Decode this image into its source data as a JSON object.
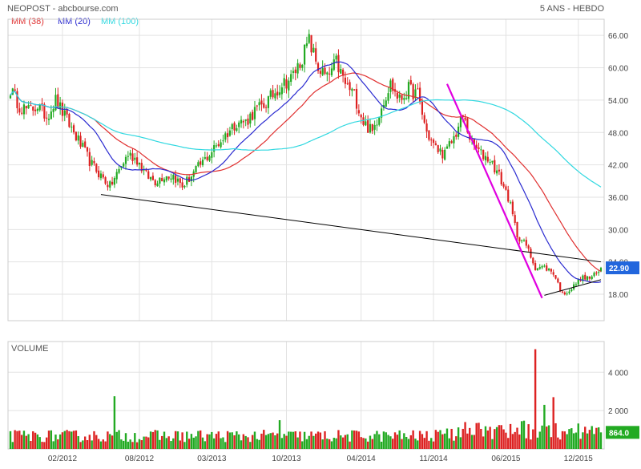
{
  "header": {
    "title": "NEOPOST - abcbourse.com",
    "period": "5 ANS - HEBDO"
  },
  "legend": [
    {
      "label": "MM (38)",
      "color": "#e03030"
    },
    {
      "label": "MM (20)",
      "color": "#2a2ad0"
    },
    {
      "label": "MM (100)",
      "color": "#30d8e0"
    }
  ],
  "chart_data": {
    "type": "candlestick",
    "price_axis": {
      "ylim": [
        13.1,
        69.0
      ],
      "ticks": [
        18,
        24,
        30,
        36,
        42,
        48,
        54,
        60,
        66
      ],
      "tick_labels": [
        "18.00",
        "24.00",
        "30.00",
        "36.00",
        "42.00",
        "48.00",
        "54.00",
        "60.00",
        "66.00"
      ]
    },
    "last_price": {
      "value": 22.9,
      "label": "22.90",
      "color": "#2266dd"
    },
    "x_axis": {
      "range": [
        0,
        261
      ],
      "ticks": [
        {
          "x": 23,
          "label": "02/2012"
        },
        {
          "x": 57,
          "label": "08/2012"
        },
        {
          "x": 89,
          "label": "03/2013"
        },
        {
          "x": 122,
          "label": "10/2013"
        },
        {
          "x": 155,
          "label": "04/2014"
        },
        {
          "x": 187,
          "label": "11/2014"
        },
        {
          "x": 219,
          "label": "06/2015"
        },
        {
          "x": 251,
          "label": "12/2015"
        }
      ]
    },
    "price_anchors": [
      [
        0,
        56
      ],
      [
        4,
        53
      ],
      [
        8,
        52
      ],
      [
        12,
        53
      ],
      [
        16,
        51
      ],
      [
        20,
        54
      ],
      [
        24,
        51
      ],
      [
        28,
        48
      ],
      [
        32,
        45
      ],
      [
        36,
        42
      ],
      [
        40,
        40
      ],
      [
        44,
        38
      ],
      [
        48,
        41
      ],
      [
        52,
        44
      ],
      [
        56,
        43
      ],
      [
        60,
        40
      ],
      [
        64,
        39
      ],
      [
        68,
        40
      ],
      [
        72,
        40
      ],
      [
        76,
        38
      ],
      [
        80,
        40
      ],
      [
        84,
        42
      ],
      [
        88,
        44
      ],
      [
        92,
        46
      ],
      [
        96,
        48
      ],
      [
        100,
        50
      ],
      [
        104,
        50
      ],
      [
        108,
        52
      ],
      [
        112,
        53
      ],
      [
        116,
        55
      ],
      [
        120,
        57
      ],
      [
        124,
        58
      ],
      [
        128,
        61
      ],
      [
        132,
        65
      ],
      [
        136,
        60
      ],
      [
        140,
        58
      ],
      [
        144,
        61
      ],
      [
        148,
        57
      ],
      [
        152,
        55
      ],
      [
        156,
        50
      ],
      [
        160,
        48
      ],
      [
        164,
        53
      ],
      [
        168,
        57
      ],
      [
        172,
        54
      ],
      [
        176,
        56
      ],
      [
        180,
        55
      ],
      [
        184,
        48
      ],
      [
        188,
        45
      ],
      [
        192,
        44
      ],
      [
        196,
        47
      ],
      [
        200,
        51
      ],
      [
        204,
        46
      ],
      [
        208,
        44
      ],
      [
        212,
        43
      ],
      [
        216,
        40
      ],
      [
        220,
        36
      ],
      [
        224,
        29
      ],
      [
        228,
        27
      ],
      [
        232,
        23
      ],
      [
        236,
        23
      ],
      [
        240,
        22
      ],
      [
        244,
        18
      ],
      [
        248,
        19
      ],
      [
        252,
        21
      ],
      [
        256,
        21
      ],
      [
        260,
        22
      ],
      [
        261,
        22.9
      ]
    ],
    "volume_axis": {
      "ylim": [
        0,
        5600
      ],
      "ticks": [
        2000,
        4000
      ],
      "tick_labels": [
        "2 000",
        "4 000"
      ],
      "label": "VOLUME"
    },
    "last_volume": {
      "value": 864,
      "label": "864.0",
      "color": "#22aa22"
    },
    "volume_spikes": [
      [
        46,
        2750
      ],
      [
        119,
        1500
      ],
      [
        221,
        1300
      ],
      [
        232,
        5200
      ],
      [
        236,
        2300
      ],
      [
        240,
        2700
      ]
    ],
    "moving_averages": [
      {
        "name": "MM (38)",
        "period": 38,
        "color": "#e03030"
      },
      {
        "name": "MM (20)",
        "period": 20,
        "color": "#2a2ad0"
      },
      {
        "name": "MM (100)",
        "period": 100,
        "color": "#30d8e0"
      }
    ],
    "trendlines": [
      {
        "color": "#000000",
        "points": [
          [
            40,
            36.5
          ],
          [
            261,
            24.0
          ]
        ]
      },
      {
        "color": "#e000e0",
        "points": [
          [
            193,
            57
          ],
          [
            235,
            17.3
          ]
        ]
      },
      {
        "color": "#000000",
        "points": [
          [
            236,
            17.8
          ],
          [
            261,
            20.7
          ]
        ]
      }
    ],
    "colors": {
      "up": "#22aa22",
      "down": "#dd2222",
      "grid": "#e2e2e2"
    }
  }
}
